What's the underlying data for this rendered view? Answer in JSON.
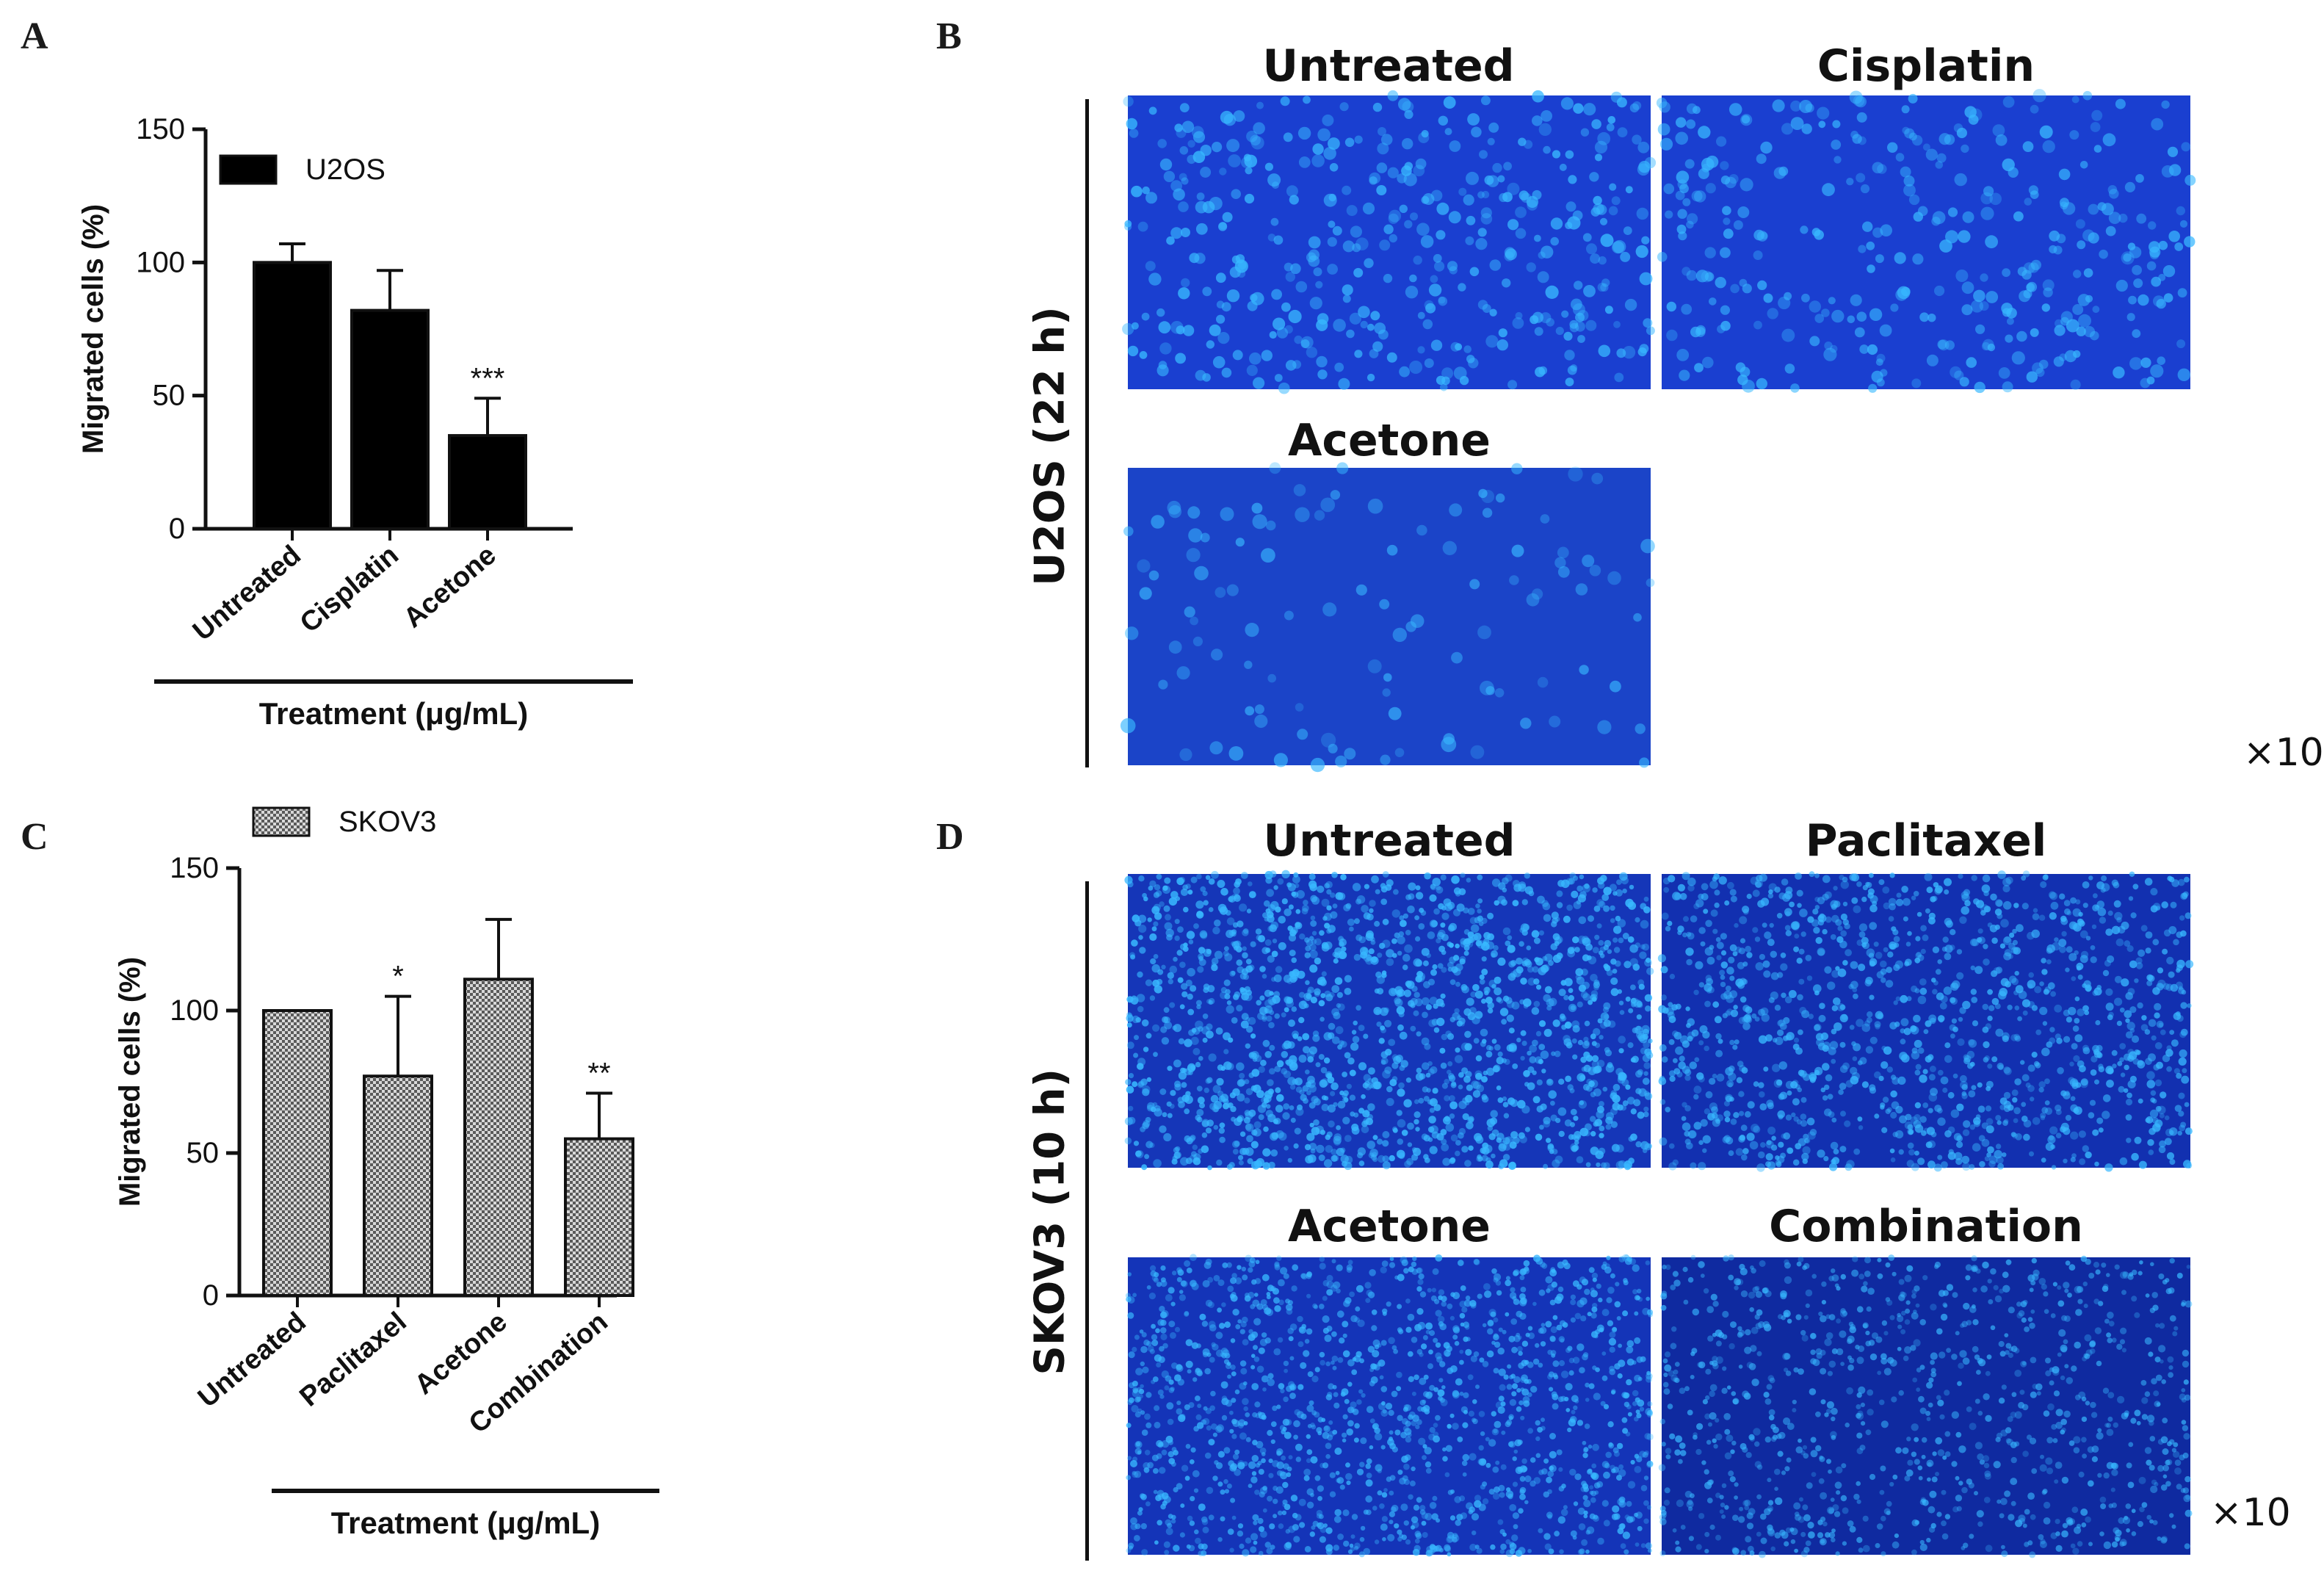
{
  "panels": {
    "a_letter": "A",
    "b_letter": "B",
    "c_letter": "C",
    "d_letter": "D"
  },
  "chart_data": [
    {
      "id": "A",
      "type": "bar",
      "categories": [
        "Untreated",
        "Cisplatin",
        "Acetone"
      ],
      "values": [
        100,
        82,
        35
      ],
      "errors": [
        7,
        15,
        14
      ],
      "significance": [
        "",
        "",
        "***"
      ],
      "series_name": "U2OS",
      "xlabel": "Treatment (μg/mL)",
      "ylabel": "Migrated cells (%)",
      "ylim": [
        0,
        150
      ],
      "yticks": [
        "0",
        "50",
        "100",
        "150"
      ],
      "fill": "#000000",
      "legend": "top-left"
    },
    {
      "id": "C",
      "type": "bar",
      "categories": [
        "Untreated",
        "Paclitaxel",
        "Acetone",
        "Combination"
      ],
      "values": [
        100,
        77,
        111,
        55
      ],
      "errors": [
        0,
        28,
        21,
        16
      ],
      "significance": [
        "",
        "*",
        "",
        "**"
      ],
      "series_name": "SKOV3",
      "xlabel": "Treatment (μg/mL)",
      "ylabel": "Migrated cells (%)",
      "ylim": [
        0,
        150
      ],
      "yticks": [
        "0",
        "50",
        "100",
        "150"
      ],
      "fill": "checkered-gray",
      "legend": "top-left"
    }
  ],
  "micrographs": {
    "b_row_label": "U2OS (22 h)",
    "b_titles": [
      "Untreated",
      "Cisplatin",
      "Acetone"
    ],
    "d_row_label": "SKOV3 (10 h)",
    "d_titles": [
      "Untreated",
      "Paclitaxel",
      "Acetone",
      "Combination"
    ],
    "magnification_b": "×10",
    "magnification_d": "×10",
    "colors": {
      "stain_bg": "#1030c8",
      "nucleus": "#38b8ff"
    }
  }
}
